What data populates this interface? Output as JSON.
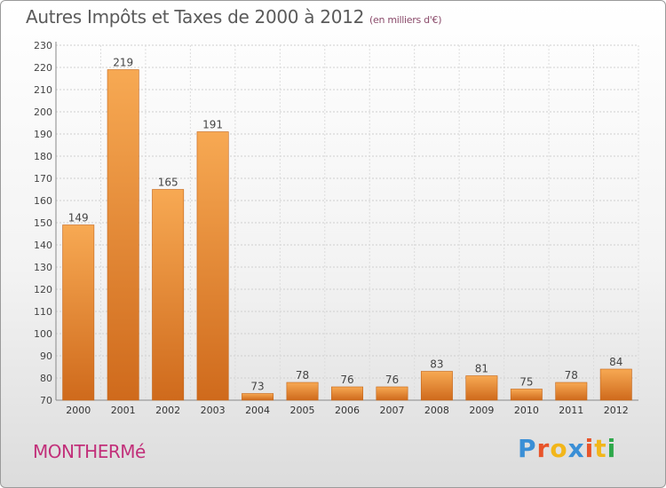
{
  "title": "Autres Impôts et Taxes de 2000 à 2012",
  "subtitle": "(en milliers d'€)",
  "commune": "MONTHERMé",
  "logo": {
    "letters": [
      "P",
      "r",
      "o",
      "x",
      "i",
      "t",
      "i"
    ],
    "colors": [
      "#3a8fd6",
      "#e8542a",
      "#f2b61a",
      "#3a8fd6",
      "#e8542a",
      "#f2b61a",
      "#2ea84a"
    ]
  },
  "chart_data": {
    "type": "bar",
    "categories": [
      "2000",
      "2001",
      "2002",
      "2003",
      "2004",
      "2005",
      "2006",
      "2007",
      "2008",
      "2009",
      "2010",
      "2011",
      "2012"
    ],
    "values": [
      149,
      219,
      165,
      191,
      73,
      78,
      76,
      76,
      83,
      81,
      75,
      78,
      84
    ],
    "title": "Autres Impôts et Taxes de 2000 à 2012",
    "xlabel": "",
    "ylabel": "",
    "ylim": [
      70,
      230
    ],
    "yticks": [
      70,
      80,
      90,
      100,
      110,
      120,
      130,
      140,
      150,
      160,
      170,
      180,
      190,
      200,
      210,
      220,
      230
    ],
    "grid": true,
    "bar_color": "#f5a04a",
    "bar_color_dark": "#d06a1a"
  }
}
